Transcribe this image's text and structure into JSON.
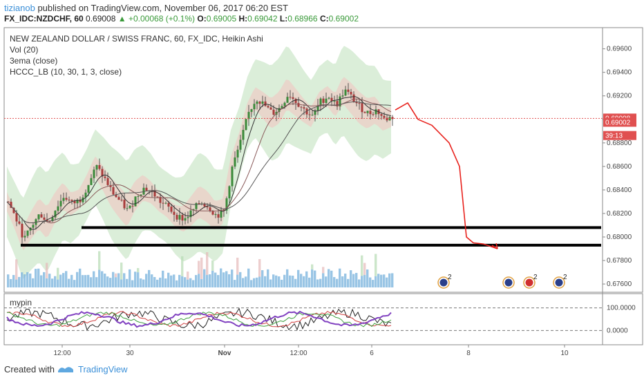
{
  "header": {
    "author": "tizianob",
    "published_text": "published on TradingView.com, November 06, 2017 06:20 EST",
    "symbol_line": "FX_IDC:NZDCHF, 60",
    "price": "0.69008",
    "change": "▲ +0.00068 (+0.1%)",
    "o_label": "O:",
    "o_value": "0.69005",
    "h_label": "H:",
    "h_value": "0.69042",
    "l_label": "L:",
    "l_value": "0.68966",
    "c_label": "C:",
    "c_value": "0.69002"
  },
  "legend": {
    "title": "NEW ZEALAND DOLLAR / SWISS FRANC, 60, FX_IDC, Heikin Ashi",
    "vol": "Vol (20)",
    "ema": "3ema (close)",
    "hccc": "HCCC_LB (10, 30, 1, 3, close)",
    "osc_name": "mypin"
  },
  "footer": {
    "created_with": "Created with",
    "brand": "TradingView"
  },
  "colors": {
    "up": "#3b8a3b",
    "down": "#a83b3b",
    "band_green": "#cfe8cc",
    "band_red": "#ead1c8",
    "volume_blue": "#7fb6de",
    "drawing_red": "#e8211c",
    "price_label": "#e05050"
  },
  "chart_data": [
    {
      "type": "candlestick",
      "title": "NEW ZEALAND DOLLAR / SWISS FRANC, 60, FX_IDC, Heikin Ashi",
      "y_ticks": [
        "0.69600",
        "0.69400",
        "0.69200",
        "0.69000",
        "0.68800",
        "0.68600",
        "0.68400",
        "0.68200",
        "0.68000",
        "0.67800",
        "0.67600"
      ],
      "ylim": [
        0.6753,
        0.6978
      ],
      "x_ticks": [
        "12:00",
        "30",
        "Nov",
        "12:00",
        "6",
        "8",
        "10"
      ],
      "price_labels": [
        {
          "text": "0.69008",
          "value": 0.69008
        },
        {
          "text": "0.69002",
          "value": 0.69002
        },
        {
          "text": "39:13",
          "value": 0.68895
        }
      ],
      "horizontal_levels": [
        0.6808,
        0.6793
      ],
      "close_path": [
        0.683,
        0.6815,
        0.6798,
        0.681,
        0.682,
        0.6812,
        0.6825,
        0.6835,
        0.6828,
        0.6832,
        0.6845,
        0.686,
        0.685,
        0.6838,
        0.683,
        0.6822,
        0.6835,
        0.6842,
        0.6838,
        0.683,
        0.6825,
        0.6818,
        0.6815,
        0.6822,
        0.683,
        0.6826,
        0.6818,
        0.6822,
        0.686,
        0.688,
        0.6905,
        0.6918,
        0.6912,
        0.6905,
        0.691,
        0.6922,
        0.6915,
        0.6908,
        0.6902,
        0.6915,
        0.692,
        0.6912,
        0.6925,
        0.6918,
        0.691,
        0.6905,
        0.6908,
        0.69,
        0.6902
      ],
      "projection": [
        0.6908,
        0.6914,
        0.69,
        0.6895,
        0.688,
        0.686,
        0.68,
        0.6795,
        0.6794,
        0.679
      ],
      "annotations": [
        {
          "icon": "nz-flag-event-icon",
          "count": "2"
        },
        {
          "icon": "nz-flag-event-icon",
          "count": ""
        },
        {
          "icon": "ch-flag-event-icon",
          "count": "2"
        },
        {
          "icon": "nz-flag-event-icon",
          "count": "2"
        }
      ]
    },
    {
      "type": "line",
      "title": "mypin",
      "y_ticks": [
        "100.0000",
        "0.0000"
      ],
      "ylim": [
        -60,
        160
      ],
      "series": [
        {
          "color": "#222222"
        },
        {
          "color": "#d04040"
        },
        {
          "color": "#40a040"
        },
        {
          "color": "#8040c0"
        }
      ]
    }
  ]
}
